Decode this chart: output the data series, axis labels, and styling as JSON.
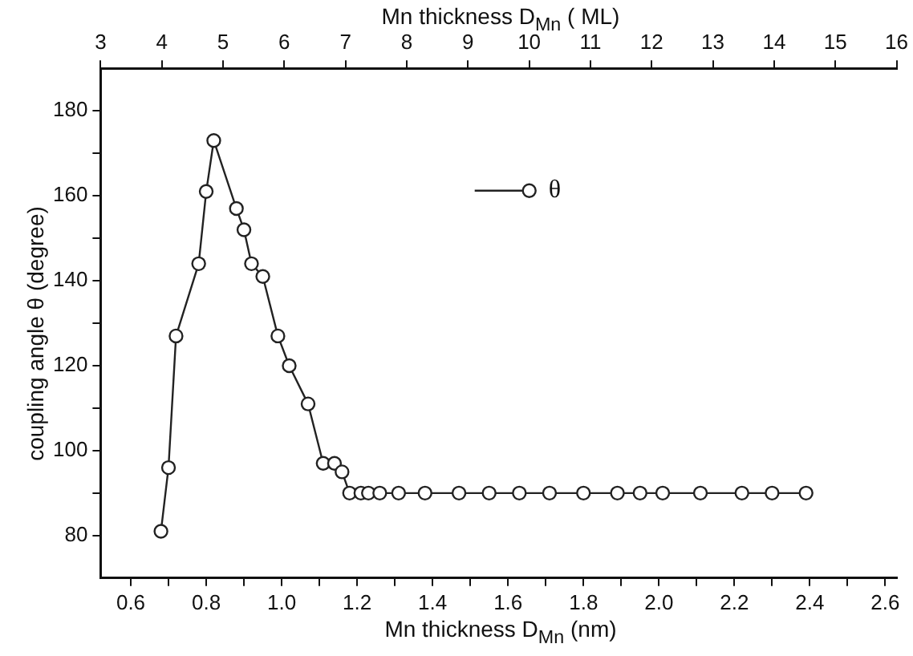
{
  "chart_data": {
    "type": "line",
    "xlabel": "Mn thickness  D$_{Mn}$ (nm)",
    "x2label": "Mn thickness D$_{Mn}$ ( ML)",
    "ylabel": "coupling angle  θ (degree)",
    "xlim": [
      0.52,
      2.63
    ],
    "xticks": [
      {
        "value": 0.6,
        "label": "0.6"
      },
      {
        "value": 0.7,
        "label": null
      },
      {
        "value": 0.8,
        "label": "0.8"
      },
      {
        "value": 0.9,
        "label": null
      },
      {
        "value": 1.0,
        "label": "1.0"
      },
      {
        "value": 1.1,
        "label": null
      },
      {
        "value": 1.2,
        "label": "1.2"
      },
      {
        "value": 1.3,
        "label": null
      },
      {
        "value": 1.4,
        "label": "1.4"
      },
      {
        "value": 1.5,
        "label": null
      },
      {
        "value": 1.6,
        "label": "1.6"
      },
      {
        "value": 1.7,
        "label": null
      },
      {
        "value": 1.8,
        "label": "1.8"
      },
      {
        "value": 1.9,
        "label": null
      },
      {
        "value": 2.0,
        "label": "2.0"
      },
      {
        "value": 2.1,
        "label": null
      },
      {
        "value": 2.2,
        "label": "2.2"
      },
      {
        "value": 2.3,
        "label": null
      },
      {
        "value": 2.4,
        "label": "2.4"
      },
      {
        "value": 2.5,
        "label": null
      },
      {
        "value": 2.6,
        "label": "2.6"
      }
    ],
    "x2lim": [
      3,
      16
    ],
    "x2ticks": [
      3,
      4,
      5,
      6,
      7,
      8,
      9,
      10,
      11,
      12,
      13,
      14,
      15,
      16
    ],
    "ylim": [
      70,
      190
    ],
    "yticks": [
      80,
      {
        "value": 90,
        "label": null
      },
      100,
      {
        "value": 110,
        "label": null
      },
      120,
      {
        "value": 130,
        "label": null
      },
      140,
      {
        "value": 150,
        "label": null
      },
      160,
      {
        "value": 170,
        "label": null
      },
      180
    ],
    "grid": false,
    "legend": "top right",
    "marker": "circle",
    "line_style": "solid",
    "series": [
      {
        "name": "θ",
        "color": "#222222",
        "x": [
          0.68,
          0.7,
          0.72,
          0.78,
          0.8,
          0.82,
          0.88,
          0.9,
          0.92,
          0.95,
          0.99,
          1.02,
          1.07,
          1.11,
          1.14,
          1.16,
          1.18,
          1.21,
          1.23,
          1.26,
          1.31,
          1.38,
          1.47,
          1.55,
          1.63,
          1.71,
          1.8,
          1.89,
          1.95,
          2.01,
          2.11,
          2.22,
          2.3,
          2.39
        ],
        "values": [
          81,
          96,
          127,
          144,
          161,
          173,
          157,
          152,
          144,
          141,
          127,
          120,
          111,
          97,
          97,
          95,
          90,
          90,
          90,
          90,
          90,
          90,
          90,
          90,
          90,
          90,
          90,
          90,
          90,
          90,
          90,
          90,
          90,
          90
        ]
      }
    ]
  }
}
